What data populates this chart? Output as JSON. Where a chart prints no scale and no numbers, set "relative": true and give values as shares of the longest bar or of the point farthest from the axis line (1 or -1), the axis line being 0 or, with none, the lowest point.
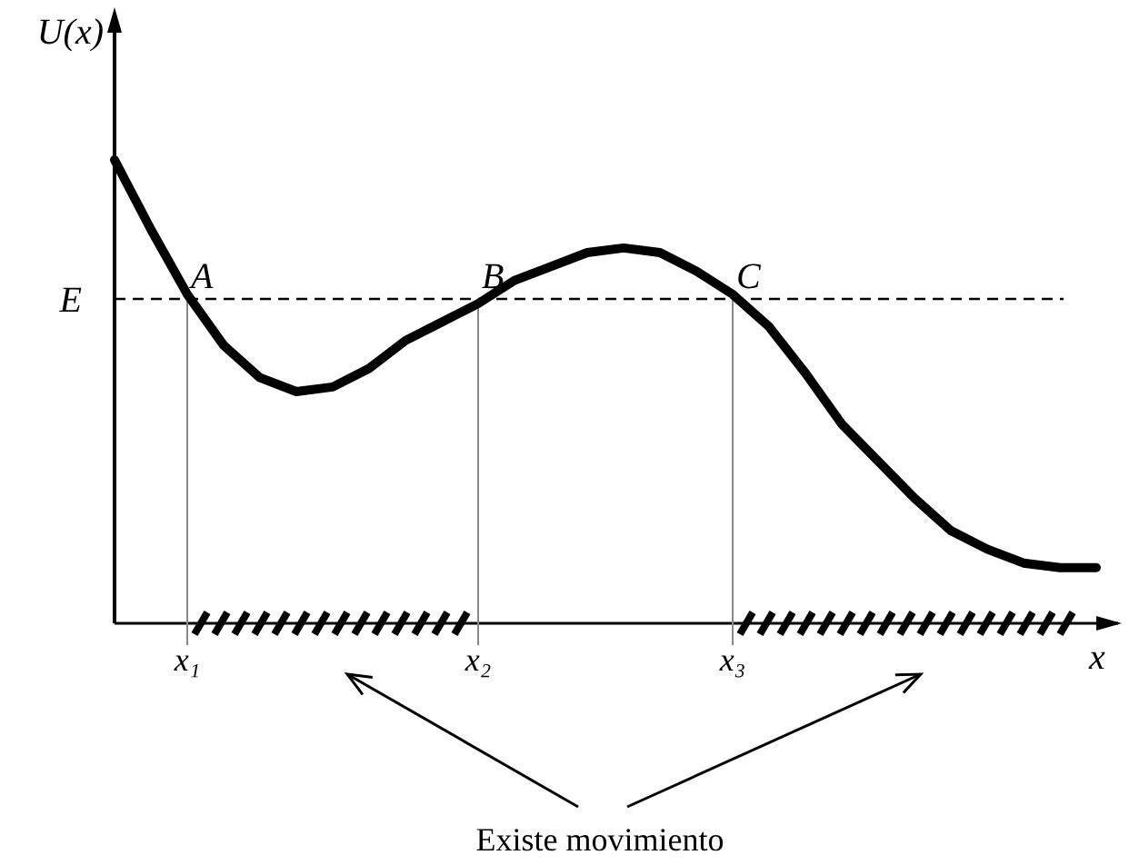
{
  "chart_data": {
    "type": "line",
    "relative": true,
    "ylabel": "U(x)",
    "xlabel": "x",
    "categories": [
      null,
      null,
      "x₁",
      null,
      null,
      null,
      null,
      null,
      null,
      null,
      "x₂",
      null,
      null,
      null,
      null,
      null,
      null,
      "x₃",
      null,
      null,
      null,
      null,
      null,
      null,
      null,
      null,
      null,
      null
    ],
    "series": [
      {
        "color": "#000000",
        "values": [
          1.0,
          0.85,
          0.71,
          0.6,
          0.53,
          0.5,
          0.51,
          0.55,
          0.61,
          0.65,
          0.69,
          0.74,
          0.77,
          0.8,
          0.81,
          0.8,
          0.76,
          0.71,
          0.64,
          0.54,
          0.43,
          0.35,
          0.27,
          0.2,
          0.16,
          0.13,
          0.12,
          0.12
        ]
      }
    ],
    "ref_lines": [
      {
        "axis": "y",
        "value": 0.7,
        "label": "E",
        "color": "#000000",
        "line_style": "dashed"
      },
      {
        "axis": "x",
        "value": "x₁",
        "color": "#888888",
        "line_style": "solid"
      },
      {
        "axis": "x",
        "value": "x₂",
        "color": "#888888",
        "line_style": "solid"
      },
      {
        "axis": "x",
        "value": "x₃",
        "color": "#888888",
        "line_style": "solid"
      }
    ],
    "annotations": [
      {
        "text": "A",
        "x": "x₁",
        "y": 0.7
      },
      {
        "text": "B",
        "x": "x₂",
        "y": 0.7
      },
      {
        "text": "C",
        "x": "x₃",
        "y": 0.7
      },
      "Existe movimiento"
    ]
  }
}
